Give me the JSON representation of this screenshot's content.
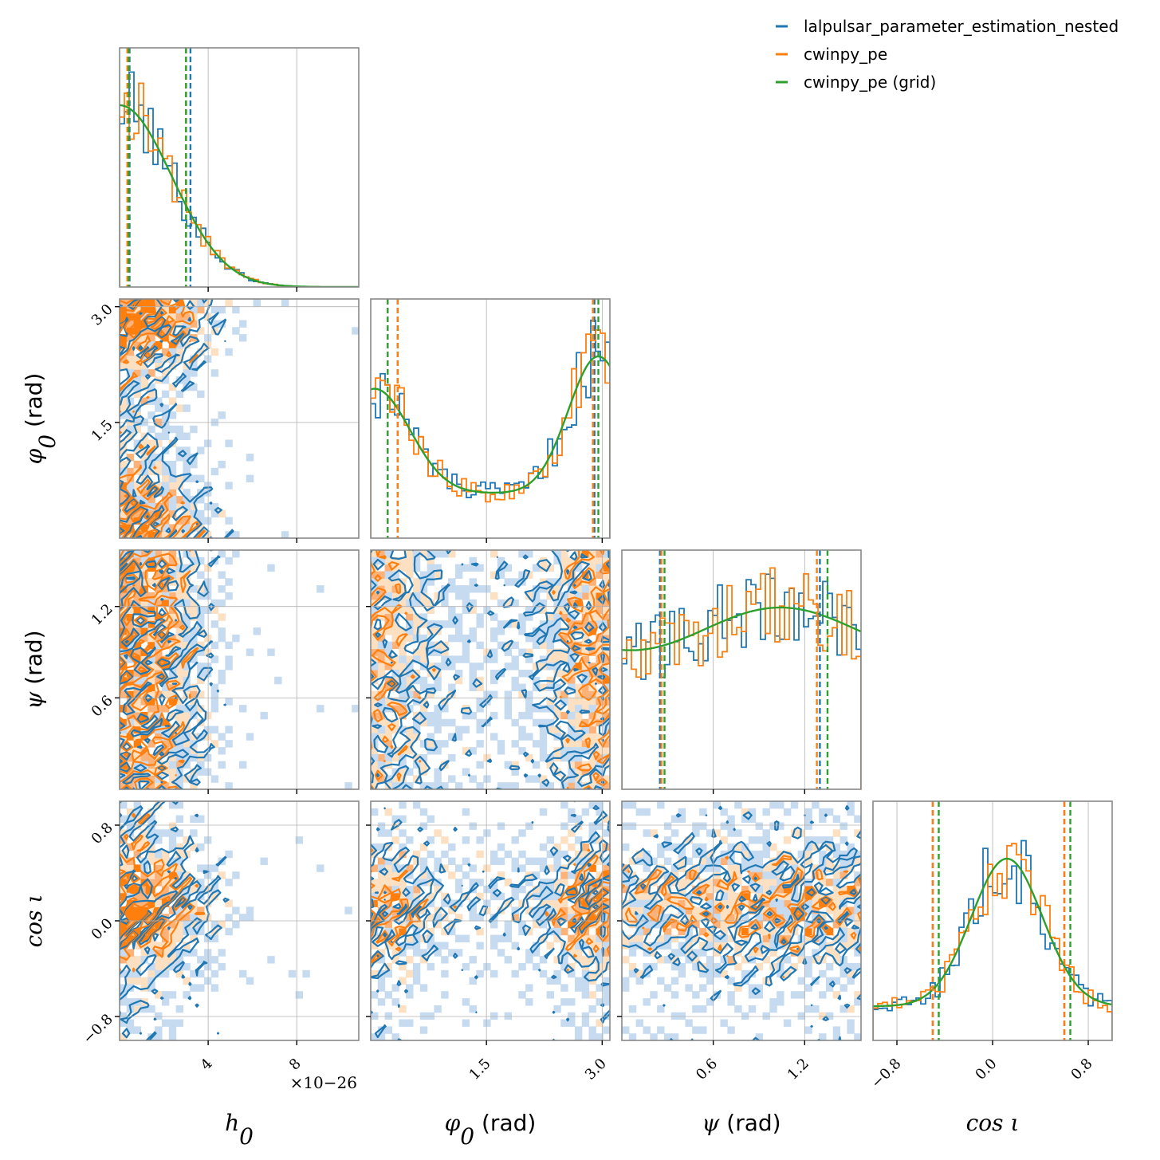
{
  "colors": {
    "lalpulsar": "#1f77b4",
    "cwinpy": "#ff7f0e",
    "grid": "#2ca02c"
  },
  "legend": [
    {
      "label": "lalpulsar_parameter_estimation_nested",
      "color": "#1f77b4"
    },
    {
      "label": "cwinpy_pe",
      "color": "#ff7f0e"
    },
    {
      "label": "cwinpy_pe (grid)",
      "color": "#2ca02c"
    }
  ],
  "chart_data": {
    "type": "corner",
    "parameters": [
      {
        "key": "h0",
        "label_math": "h",
        "label_sub": "0",
        "label_unit": "",
        "range": [
          0,
          10.8
        ],
        "ticks": [
          4,
          8
        ],
        "tick_labels": [
          "4",
          "8"
        ],
        "exponent": "×10−26",
        "density_type": "decay",
        "decay_scale": 2.9,
        "quantiles": {
          "lalpulsar": [
            0.45,
            3.2
          ],
          "cwinpy": [
            0.35,
            3.0
          ],
          "grid": [
            0.42,
            3.0
          ]
        }
      },
      {
        "key": "phi0",
        "label_math": "φ",
        "label_sub": "0",
        "label_unit": " (rad)",
        "range": [
          0,
          3.1
        ],
        "ticks": [
          1.5,
          3.0
        ],
        "tick_labels": [
          "1.5",
          "3.0"
        ],
        "density_type": "bimodal",
        "quantiles": {
          "lalpulsar": [
            0.35,
            2.9
          ],
          "cwinpy": [
            0.35,
            2.88
          ],
          "grid": [
            0.22,
            2.95
          ]
        }
      },
      {
        "key": "psi",
        "label_math": "ψ",
        "label_sub": "",
        "label_unit": " (rad)",
        "range": [
          0,
          1.57
        ],
        "ticks": [
          0.6,
          1.2
        ],
        "tick_labels": [
          "0.6",
          "1.2"
        ],
        "density_type": "flat",
        "quantiles": {
          "lalpulsar": [
            0.25,
            1.3
          ],
          "cwinpy": [
            0.26,
            1.28
          ],
          "grid": [
            0.28,
            1.35
          ]
        }
      },
      {
        "key": "cosiota",
        "label_math": "cos ι",
        "label_sub": "",
        "label_unit": "",
        "range": [
          -1.0,
          1.0
        ],
        "ticks": [
          -0.8,
          0.0,
          0.8
        ],
        "tick_labels": [
          "−0.8",
          "0.0",
          "0.8"
        ],
        "density_type": "peak",
        "quantiles": {
          "lalpulsar": [
            -0.5,
            0.6
          ],
          "cwinpy": [
            -0.5,
            0.6
          ],
          "grid": [
            -0.45,
            0.65
          ]
        }
      }
    ],
    "y_ticks_rows": [
      {
        "row": 1,
        "ticks": [
          1.5,
          3.0
        ],
        "tick_labels": [
          "1.5",
          "3.0"
        ]
      },
      {
        "row": 2,
        "ticks": [
          0.6,
          1.2
        ],
        "tick_labels": [
          "0.6",
          "1.2"
        ]
      },
      {
        "row": 3,
        "ticks": [
          -0.8,
          0.0,
          0.8
        ],
        "tick_labels": [
          "−0.8",
          "0.0",
          "0.8"
        ]
      }
    ],
    "series": [
      {
        "name": "lalpulsar_parameter_estimation_nested",
        "style": "step-histogram + contours",
        "color": "#1f77b4"
      },
      {
        "name": "cwinpy_pe",
        "style": "step-histogram + filled contours",
        "color": "#ff7f0e"
      },
      {
        "name": "cwinpy_pe (grid)",
        "style": "smooth line + dashed quantiles",
        "color": "#2ca02c"
      }
    ],
    "grid": true,
    "legend_position": "top-right"
  }
}
